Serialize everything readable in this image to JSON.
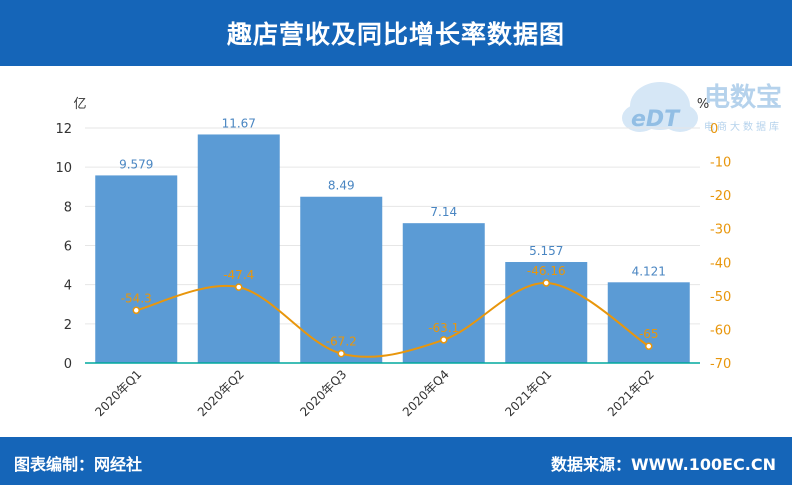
{
  "header": {
    "title": "趣店营收及同比增长率数据图"
  },
  "footer": {
    "left": "图表编制：网经社",
    "right": "数据来源：WWW.100EC.CN"
  },
  "watermark": {
    "logo_text": "eDT",
    "name": "电数宝",
    "tagline": "电商大数据库"
  },
  "colors": {
    "header_bg": "#1565b8",
    "bar": "#5b9bd5",
    "line": "#e8960c",
    "axis_left": "#333333",
    "axis_right": "#e8960c"
  },
  "chart_data": {
    "type": "bar",
    "title": "趣店营收及同比增长率数据图",
    "categories": [
      "2020年Q1",
      "2020年Q2",
      "2020年Q3",
      "2020年Q4",
      "2021年Q1",
      "2021年Q2"
    ],
    "ylabel": "亿",
    "ylim": [
      0,
      12
    ],
    "yticks": [
      0,
      2,
      4,
      6,
      8,
      10,
      12
    ],
    "y2label": "%",
    "y2lim": [
      -70,
      0
    ],
    "y2ticks": [
      0,
      -10,
      -20,
      -30,
      -40,
      -50,
      -60,
      -70
    ],
    "series": [
      {
        "type": "bar",
        "axis": "left",
        "values": [
          9.579,
          11.67,
          8.49,
          7.14,
          5.157,
          4.121
        ],
        "labels": [
          "9.579",
          "11.67",
          "8.49",
          "7.14",
          "5.157",
          "4.121"
        ]
      },
      {
        "type": "line",
        "axis": "right",
        "values": [
          -54.3,
          -47.4,
          -67.2,
          -63.1,
          -46.16,
          -65
        ],
        "labels": [
          "-54.3",
          "-47.4",
          "-67.2",
          "-63.1",
          "-46.16",
          "-65"
        ]
      }
    ],
    "grid": true
  }
}
